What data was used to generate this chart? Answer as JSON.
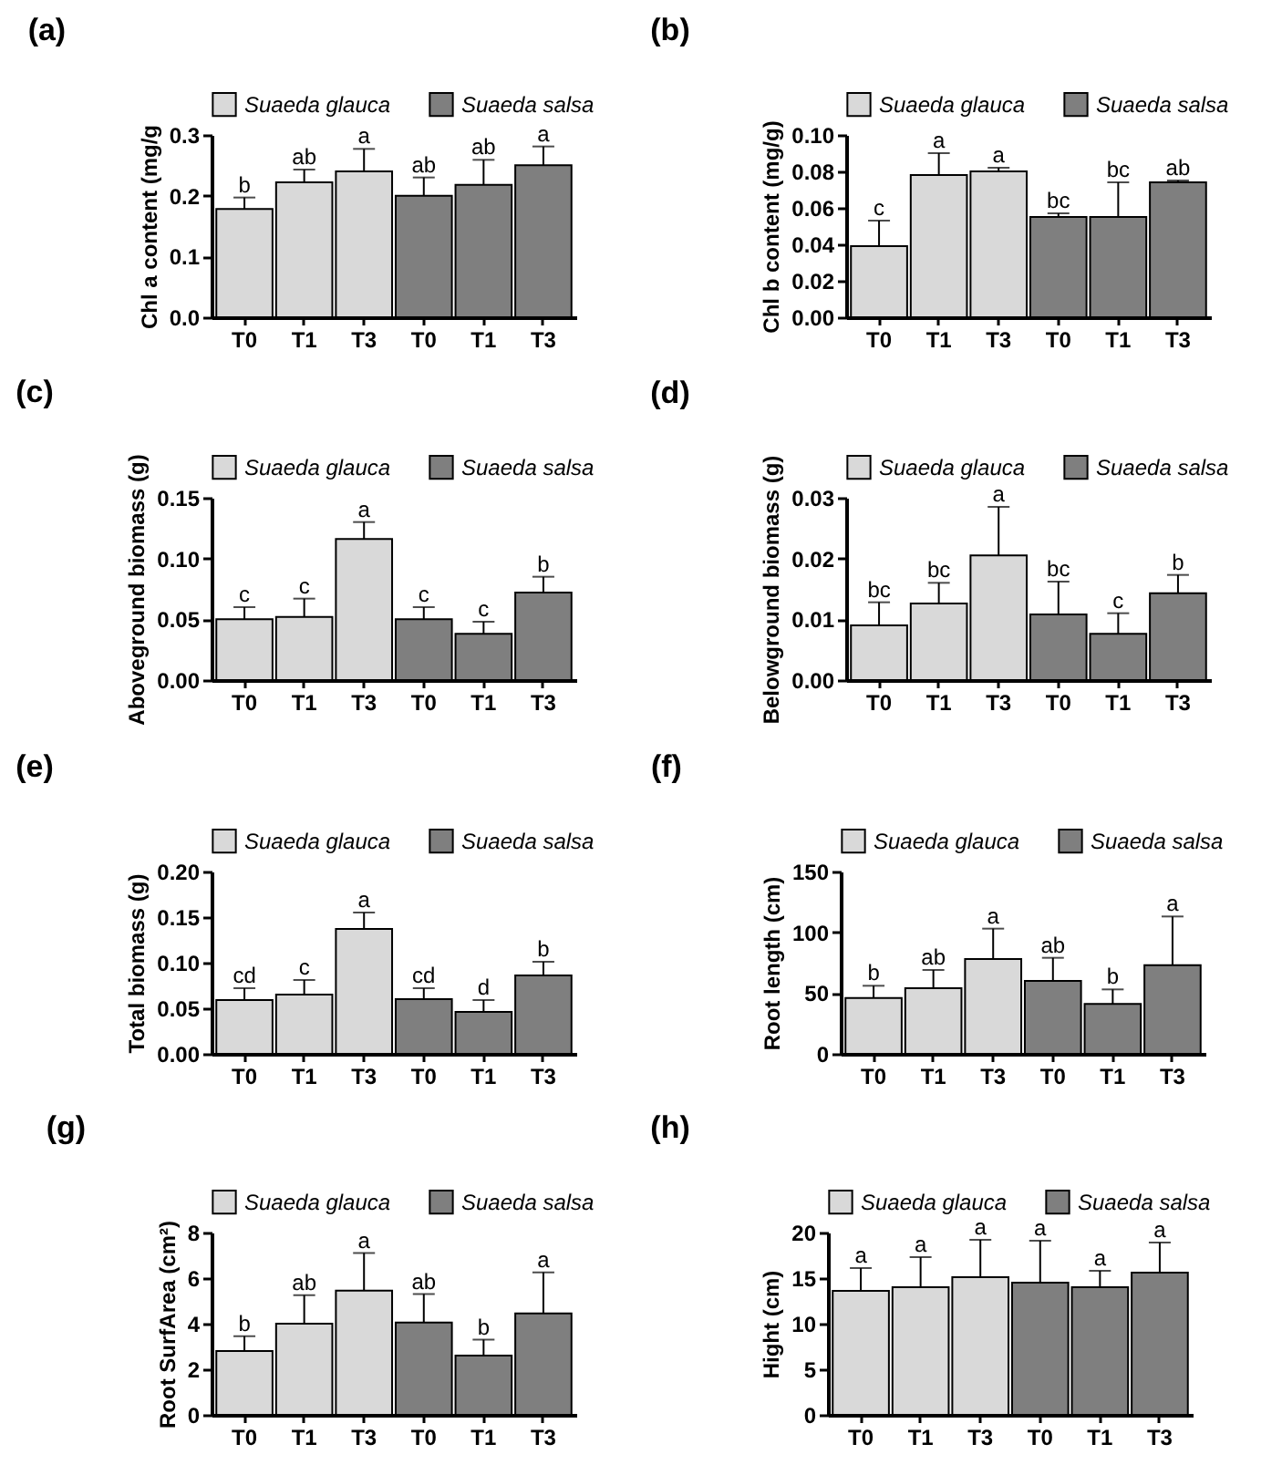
{
  "chart_data": [
    {
      "type": "bar",
      "title": "(a)",
      "ylabel": "Chl a content (mg/g",
      "categories": [
        "T0",
        "T1",
        "T3",
        "T0",
        "T1",
        "T3"
      ],
      "ylim": [
        0,
        0.3
      ],
      "yticks": [
        {
          "value": 0,
          "label": "0.0"
        },
        0.1,
        0.2,
        0.3
      ],
      "legend": "top",
      "series": [
        {
          "name": "Suaeda glauca",
          "color": "#d9d9d9",
          "values": [
            0.178,
            0.222,
            0.24,
            null,
            null,
            null
          ],
          "errors": [
            [
              0.178,
              0.197
            ],
            [
              0.222,
              0.243
            ],
            [
              0.24,
              0.277
            ],
            null,
            null,
            null
          ],
          "value_labels": [
            "b",
            "ab",
            "a",
            null,
            null,
            null
          ]
        },
        {
          "name": "Suaeda salsa",
          "color": "#7f7f7f",
          "values": [
            null,
            null,
            null,
            0.2,
            0.218,
            0.25
          ],
          "errors": [
            null,
            null,
            null,
            [
              0.2,
              0.23
            ],
            [
              0.218,
              0.259
            ],
            [
              0.25,
              0.281
            ]
          ],
          "value_labels": [
            null,
            null,
            null,
            "ab",
            "ab",
            "a"
          ]
        }
      ]
    },
    {
      "type": "bar",
      "title": "(b)",
      "ylabel": "Chl b content (mg/g)",
      "categories": [
        "T0",
        "T1",
        "T3",
        "T0",
        "T1",
        "T3"
      ],
      "ylim": [
        0,
        0.1
      ],
      "yticks": [
        {
          "value": 0,
          "label": "0.00"
        },
        0.02,
        0.04,
        0.06,
        0.08,
        {
          "value": 0.1,
          "label": "0.10"
        }
      ],
      "legend": "top",
      "series": [
        {
          "name": "Suaeda glauca",
          "color": "#d9d9d9",
          "values": [
            0.039,
            0.078,
            0.08,
            null,
            null,
            null
          ],
          "errors": [
            [
              0.039,
              0.053
            ],
            [
              0.078,
              0.09
            ],
            [
              0.08,
              0.082
            ],
            null,
            null,
            null
          ],
          "value_labels": [
            "c",
            "a",
            "a",
            null,
            null,
            null
          ]
        },
        {
          "name": "Suaeda salsa",
          "color": "#7f7f7f",
          "values": [
            null,
            null,
            null,
            0.055,
            0.055,
            0.074
          ],
          "errors": [
            null,
            null,
            null,
            [
              0.055,
              0.057
            ],
            [
              0.055,
              0.074
            ],
            [
              0.074,
              0.075
            ]
          ],
          "value_labels": [
            null,
            null,
            null,
            "bc",
            "bc",
            "ab"
          ]
        }
      ]
    },
    {
      "type": "bar",
      "title": "(c)",
      "ylabel": "Aboveground biomass (g)",
      "categories": [
        "T0",
        "T1",
        "T3",
        "T0",
        "T1",
        "T3"
      ],
      "ylim": [
        0,
        0.15
      ],
      "yticks": [
        {
          "value": 0,
          "label": "0.00"
        },
        0.05,
        {
          "value": 0.1,
          "label": "0.10"
        },
        0.15
      ],
      "legend": "top",
      "series": [
        {
          "name": "Suaeda glauca",
          "color": "#d9d9d9",
          "values": [
            0.05,
            0.052,
            0.116,
            null,
            null,
            null
          ],
          "errors": [
            [
              0.05,
              0.06
            ],
            [
              0.052,
              0.067
            ],
            [
              0.116,
              0.13
            ],
            null,
            null,
            null
          ],
          "value_labels": [
            "c",
            "c",
            "a",
            null,
            null,
            null
          ]
        },
        {
          "name": "Suaeda salsa",
          "color": "#7f7f7f",
          "values": [
            null,
            null,
            null,
            0.05,
            0.038,
            0.072
          ],
          "errors": [
            null,
            null,
            null,
            [
              0.05,
              0.06
            ],
            [
              0.038,
              0.048
            ],
            [
              0.072,
              0.085
            ]
          ],
          "value_labels": [
            null,
            null,
            null,
            "c",
            "c",
            "b"
          ]
        }
      ]
    },
    {
      "type": "bar",
      "title": "(d)",
      "ylabel": "Belowground biomass (g)",
      "categories": [
        "T0",
        "T1",
        "T3",
        "T0",
        "T1",
        "T3"
      ],
      "ylim": [
        0,
        0.03
      ],
      "yticks": [
        {
          "value": 0,
          "label": "0.00"
        },
        0.01,
        0.02,
        0.03
      ],
      "legend": "top",
      "series": [
        {
          "name": "Suaeda glauca",
          "color": "#d9d9d9",
          "values": [
            0.009,
            0.0126,
            0.0205,
            null,
            null,
            null
          ],
          "errors": [
            [
              0.009,
              0.0128
            ],
            [
              0.0126,
              0.016
            ],
            [
              0.0205,
              0.0285
            ],
            null,
            null,
            null
          ],
          "value_labels": [
            "bc",
            "bc",
            "a",
            null,
            null,
            null
          ]
        },
        {
          "name": "Suaeda salsa",
          "color": "#7f7f7f",
          "values": [
            null,
            null,
            null,
            0.0108,
            0.0076,
            0.0143
          ],
          "errors": [
            null,
            null,
            null,
            [
              0.0108,
              0.0162
            ],
            [
              0.0076,
              0.011
            ],
            [
              0.0143,
              0.0173
            ]
          ],
          "value_labels": [
            null,
            null,
            null,
            "bc",
            "c",
            "b"
          ]
        }
      ]
    },
    {
      "type": "bar",
      "title": "(e)",
      "ylabel": "Total biomass (g)",
      "categories": [
        "T0",
        "T1",
        "T3",
        "T0",
        "T1",
        "T3"
      ],
      "ylim": [
        0,
        0.2
      ],
      "yticks": [
        {
          "value": 0,
          "label": "0.00"
        },
        0.05,
        {
          "value": 0.1,
          "label": "0.10"
        },
        0.15,
        {
          "value": 0.2,
          "label": "0.20"
        }
      ],
      "legend": "top",
      "series": [
        {
          "name": "Suaeda glauca",
          "color": "#d9d9d9",
          "values": [
            0.059,
            0.065,
            0.137,
            null,
            null,
            null
          ],
          "errors": [
            [
              0.059,
              0.072
            ],
            [
              0.065,
              0.081
            ],
            [
              0.137,
              0.155
            ],
            null,
            null,
            null
          ],
          "value_labels": [
            "cd",
            "c",
            "a",
            null,
            null,
            null
          ]
        },
        {
          "name": "Suaeda salsa",
          "color": "#7f7f7f",
          "values": [
            null,
            null,
            null,
            0.06,
            0.046,
            0.086
          ],
          "errors": [
            null,
            null,
            null,
            [
              0.06,
              0.072
            ],
            [
              0.046,
              0.059
            ],
            [
              0.086,
              0.101
            ]
          ],
          "value_labels": [
            null,
            null,
            null,
            "cd",
            "d",
            "b"
          ]
        }
      ]
    },
    {
      "type": "bar",
      "title": "(f)",
      "ylabel": "Root length (cm)",
      "categories": [
        "T0",
        "T1",
        "T3",
        "T0",
        "T1",
        "T3"
      ],
      "ylim": [
        0,
        150
      ],
      "yticks": [
        0,
        50,
        100,
        150
      ],
      "legend": "top",
      "series": [
        {
          "name": "Suaeda glauca",
          "color": "#d9d9d9",
          "values": [
            46,
            54,
            78,
            null,
            null,
            null
          ],
          "errors": [
            [
              46,
              56
            ],
            [
              54,
              69
            ],
            [
              78,
              103
            ],
            null,
            null,
            null
          ],
          "value_labels": [
            "b",
            "ab",
            "a",
            null,
            null,
            null
          ]
        },
        {
          "name": "Suaeda salsa",
          "color": "#7f7f7f",
          "values": [
            null,
            null,
            null,
            60,
            41,
            73
          ],
          "errors": [
            null,
            null,
            null,
            [
              60,
              79
            ],
            [
              41,
              53
            ],
            [
              73,
              113
            ]
          ],
          "value_labels": [
            null,
            null,
            null,
            "ab",
            "b",
            "a"
          ]
        }
      ]
    },
    {
      "type": "bar",
      "title": "(g)",
      "ylabel": "Root SurfArea (cm²)",
      "categories": [
        "T0",
        "T1",
        "T3",
        "T0",
        "T1",
        "T3"
      ],
      "ylim": [
        0,
        8
      ],
      "yticks": [
        0,
        2,
        4,
        6,
        8
      ],
      "legend": "top",
      "series": [
        {
          "name": "Suaeda glauca",
          "color": "#d9d9d9",
          "values": [
            2.8,
            4.0,
            5.45,
            null,
            null,
            null
          ],
          "errors": [
            [
              2.8,
              3.45
            ],
            [
              4.0,
              5.25
            ],
            [
              5.45,
              7.1
            ],
            null,
            null,
            null
          ],
          "value_labels": [
            "b",
            "ab",
            "a",
            null,
            null,
            null
          ]
        },
        {
          "name": "Suaeda salsa",
          "color": "#7f7f7f",
          "values": [
            null,
            null,
            null,
            4.05,
            2.6,
            4.45
          ],
          "errors": [
            null,
            null,
            null,
            [
              4.05,
              5.3
            ],
            [
              2.6,
              3.3
            ],
            [
              4.45,
              6.25
            ]
          ],
          "value_labels": [
            null,
            null,
            null,
            "ab",
            "b",
            "a"
          ]
        }
      ]
    },
    {
      "type": "bar",
      "title": "(h)",
      "ylabel": "Hight (cm)",
      "categories": [
        "T0",
        "T1",
        "T3",
        "T0",
        "T1",
        "T3"
      ],
      "ylim": [
        0,
        20
      ],
      "yticks": [
        0,
        5,
        10,
        15,
        20
      ],
      "legend": "top",
      "series": [
        {
          "name": "Suaeda glauca",
          "color": "#d9d9d9",
          "values": [
            13.6,
            14.0,
            15.1,
            null,
            null,
            null
          ],
          "errors": [
            [
              13.6,
              16.1
            ],
            [
              14.0,
              17.3
            ],
            [
              15.1,
              19.2
            ],
            null,
            null,
            null
          ],
          "value_labels": [
            "a",
            "a",
            "a",
            null,
            null,
            null
          ]
        },
        {
          "name": "Suaeda salsa",
          "color": "#7f7f7f",
          "values": [
            null,
            null,
            null,
            14.5,
            14.0,
            15.6
          ],
          "errors": [
            null,
            null,
            null,
            [
              14.5,
              19.1
            ],
            [
              14.0,
              15.8
            ],
            [
              15.6,
              18.9
            ]
          ],
          "value_labels": [
            null,
            null,
            null,
            "a",
            "a",
            "a"
          ]
        }
      ]
    }
  ]
}
